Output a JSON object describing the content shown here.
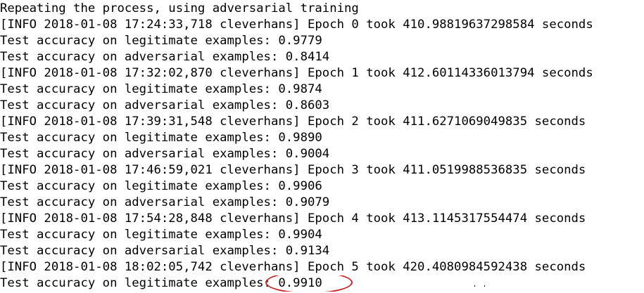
{
  "terminal": {
    "lines": [
      "Repeating the process, using adversarial training",
      "[INFO 2018-01-08 17:24:33,718 cleverhans] Epoch 0 took 410.98819637298584 seconds",
      "Test accuracy on legitimate examples: 0.9779",
      "Test accuracy on adversarial examples: 0.8414",
      "[INFO 2018-01-08 17:32:02,870 cleverhans] Epoch 1 took 412.60114336013794 seconds",
      "Test accuracy on legitimate examples: 0.9874",
      "Test accuracy on adversarial examples: 0.8603",
      "[INFO 2018-01-08 17:39:31,548 cleverhans] Epoch 2 took 411.6271069049835 seconds",
      "Test accuracy on legitimate examples: 0.9890",
      "Test accuracy on adversarial examples: 0.9004",
      "[INFO 2018-01-08 17:46:59,021 cleverhans] Epoch 3 took 411.0519988536835 seconds",
      "Test accuracy on legitimate examples: 0.9906",
      "Test accuracy on adversarial examples: 0.9079",
      "[INFO 2018-01-08 17:54:28,848 cleverhans] Epoch 4 took 413.1145317554474 seconds",
      "Test accuracy on legitimate examples: 0.9904",
      "Test accuracy on adversarial examples: 0.9134",
      "[INFO 2018-01-08 18:02:05,742 cleverhans] Epoch 5 took 420.4080984592438 seconds"
    ],
    "last_line": {
      "prefix": "Test accuracy on legitimate examples: ",
      "value": "0.9910"
    }
  },
  "colors": {
    "text": "#000000",
    "background": "#ffffff",
    "annotation_circle": "#cc1f1f"
  }
}
